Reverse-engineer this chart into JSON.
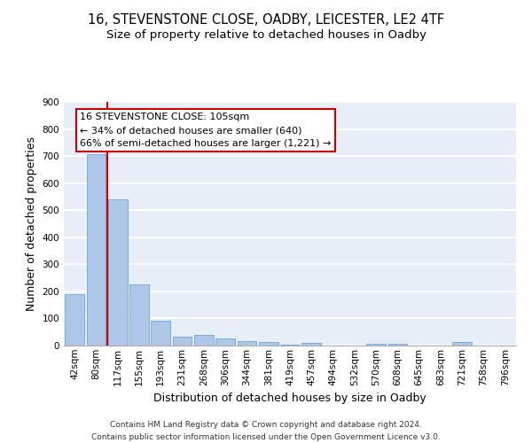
{
  "title_line1": "16, STEVENSTONE CLOSE, OADBY, LEICESTER, LE2 4TF",
  "title_line2": "Size of property relative to detached houses in Oadby",
  "xlabel": "Distribution of detached houses by size in Oadby",
  "ylabel": "Number of detached properties",
  "categories": [
    "42sqm",
    "80sqm",
    "117sqm",
    "155sqm",
    "193sqm",
    "231sqm",
    "268sqm",
    "306sqm",
    "344sqm",
    "381sqm",
    "419sqm",
    "457sqm",
    "494sqm",
    "532sqm",
    "570sqm",
    "608sqm",
    "645sqm",
    "683sqm",
    "721sqm",
    "758sqm",
    "796sqm"
  ],
  "values": [
    190,
    708,
    540,
    225,
    92,
    32,
    40,
    27,
    15,
    12,
    4,
    11,
    0,
    0,
    8,
    7,
    0,
    0,
    12,
    0,
    0
  ],
  "bar_color": "#aec6e8",
  "bar_edge_color": "#5b9bd5",
  "vline_color": "#cc0000",
  "annotation_text": "16 STEVENSTONE CLOSE: 105sqm\n← 34% of detached houses are smaller (640)\n66% of semi-detached houses are larger (1,221) →",
  "annotation_box_color": "#cc0000",
  "ylim": [
    0,
    900
  ],
  "yticks": [
    0,
    100,
    200,
    300,
    400,
    500,
    600,
    700,
    800,
    900
  ],
  "background_color": "#e8eef8",
  "grid_color": "#ffffff",
  "footer_line1": "Contains HM Land Registry data © Crown copyright and database right 2024.",
  "footer_line2": "Contains public sector information licensed under the Open Government Licence v3.0.",
  "title_fontsize": 10.5,
  "subtitle_fontsize": 9.5,
  "axis_label_fontsize": 9,
  "tick_fontsize": 7.5,
  "annotation_fontsize": 8
}
